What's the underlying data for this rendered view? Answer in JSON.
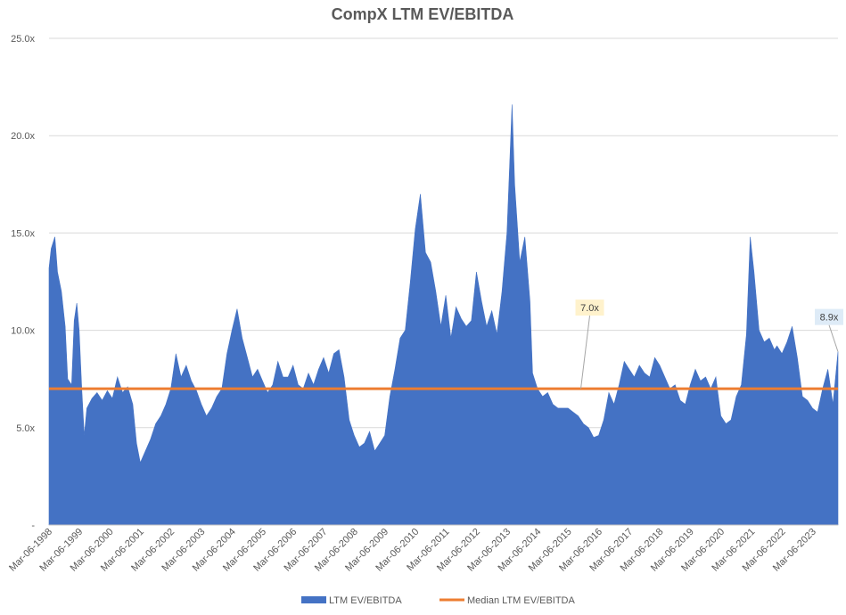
{
  "chart_data": {
    "type": "area",
    "title": "CompX LTM EV/EBITDA",
    "y_ticks": [
      "-",
      "5.0x",
      "10.0x",
      "15.0x",
      "20.0x",
      "25.0x"
    ],
    "ylim": [
      0,
      25
    ],
    "x_labels": [
      "Mar-06-1998",
      "Mar-06-1999",
      "Mar-06-2000",
      "Mar-06-2001",
      "Mar-06-2002",
      "Mar-06-2003",
      "Mar-06-2004",
      "Mar-06-2005",
      "Mar-06-2006",
      "Mar-06-2007",
      "Mar-06-2008",
      "Mar-06-2009",
      "Mar-06-2010",
      "Mar-06-2011",
      "Mar-06-2012",
      "Mar-06-2013",
      "Mar-06-2014",
      "Mar-06-2015",
      "Mar-06-2016",
      "Mar-06-2017",
      "Mar-06-2018",
      "Mar-06-2019",
      "Mar-06-2020",
      "Mar-06-2021",
      "Mar-06-2022",
      "Mar-06-2023"
    ],
    "x_start": "1998-03-06",
    "x_end": "2023-12-31",
    "series": [
      {
        "name": "LTM EV/EBITDA",
        "kind": "area",
        "color": "#4472C4",
        "points": [
          [
            "1998-03-06",
            13.2
          ],
          [
            "1998-04-01",
            14.2
          ],
          [
            "1998-05-15",
            14.8
          ],
          [
            "1998-06-15",
            13.0
          ],
          [
            "1998-08-01",
            12.0
          ],
          [
            "1998-09-15",
            10.2
          ],
          [
            "1998-10-15",
            7.5
          ],
          [
            "1998-12-01",
            7.2
          ],
          [
            "1999-01-01",
            10.5
          ],
          [
            "1999-02-01",
            11.4
          ],
          [
            "1999-03-01",
            10.0
          ],
          [
            "1999-04-01",
            7.0
          ],
          [
            "1999-05-01",
            4.6
          ],
          [
            "1999-06-01",
            6.0
          ],
          [
            "1999-08-01",
            6.5
          ],
          [
            "1999-10-01",
            6.8
          ],
          [
            "1999-12-01",
            6.4
          ],
          [
            "2000-02-01",
            6.9
          ],
          [
            "2000-04-01",
            6.5
          ],
          [
            "2000-06-01",
            7.6
          ],
          [
            "2000-08-01",
            6.8
          ],
          [
            "2000-10-01",
            7.1
          ],
          [
            "2000-12-01",
            6.2
          ],
          [
            "2001-01-15",
            4.2
          ],
          [
            "2001-03-01",
            3.2
          ],
          [
            "2001-05-01",
            3.8
          ],
          [
            "2001-07-01",
            4.4
          ],
          [
            "2001-09-01",
            5.2
          ],
          [
            "2001-11-01",
            5.6
          ],
          [
            "2002-01-01",
            6.2
          ],
          [
            "2002-03-01",
            7.0
          ],
          [
            "2002-05-01",
            8.8
          ],
          [
            "2002-07-01",
            7.6
          ],
          [
            "2002-09-01",
            8.2
          ],
          [
            "2002-11-01",
            7.4
          ],
          [
            "2003-01-01",
            6.9
          ],
          [
            "2003-03-01",
            6.2
          ],
          [
            "2003-05-01",
            5.6
          ],
          [
            "2003-07-01",
            6.0
          ],
          [
            "2003-09-01",
            6.6
          ],
          [
            "2003-11-01",
            7.0
          ],
          [
            "2004-01-01",
            8.8
          ],
          [
            "2004-03-01",
            10.0
          ],
          [
            "2004-05-01",
            11.1
          ],
          [
            "2004-07-01",
            9.6
          ],
          [
            "2004-09-01",
            8.6
          ],
          [
            "2004-11-01",
            7.6
          ],
          [
            "2005-01-01",
            8.0
          ],
          [
            "2005-03-01",
            7.4
          ],
          [
            "2005-05-01",
            6.8
          ],
          [
            "2005-07-01",
            7.2
          ],
          [
            "2005-09-01",
            8.4
          ],
          [
            "2005-11-01",
            7.6
          ],
          [
            "2006-01-01",
            7.6
          ],
          [
            "2006-03-01",
            8.2
          ],
          [
            "2006-05-01",
            7.2
          ],
          [
            "2006-07-01",
            7.0
          ],
          [
            "2006-09-01",
            7.8
          ],
          [
            "2006-11-01",
            7.2
          ],
          [
            "2007-01-01",
            8.0
          ],
          [
            "2007-03-01",
            8.6
          ],
          [
            "2007-05-01",
            7.8
          ],
          [
            "2007-07-01",
            8.8
          ],
          [
            "2007-09-01",
            9.0
          ],
          [
            "2007-11-01",
            7.6
          ],
          [
            "2008-01-01",
            5.4
          ],
          [
            "2008-03-01",
            4.6
          ],
          [
            "2008-05-01",
            4.0
          ],
          [
            "2008-07-01",
            4.2
          ],
          [
            "2008-09-01",
            4.8
          ],
          [
            "2008-11-01",
            3.8
          ],
          [
            "2009-01-01",
            4.2
          ],
          [
            "2009-03-01",
            4.6
          ],
          [
            "2009-05-01",
            6.6
          ],
          [
            "2009-07-01",
            8.0
          ],
          [
            "2009-09-01",
            9.6
          ],
          [
            "2009-11-01",
            10.0
          ],
          [
            "2010-01-01",
            12.5
          ],
          [
            "2010-03-01",
            15.2
          ],
          [
            "2010-05-01",
            17.0
          ],
          [
            "2010-07-01",
            14.0
          ],
          [
            "2010-09-01",
            13.5
          ],
          [
            "2010-11-01",
            12.0
          ],
          [
            "2011-01-01",
            10.2
          ],
          [
            "2011-03-01",
            11.8
          ],
          [
            "2011-05-01",
            9.6
          ],
          [
            "2011-07-01",
            11.2
          ],
          [
            "2011-09-01",
            10.6
          ],
          [
            "2011-11-01",
            10.2
          ],
          [
            "2012-01-01",
            10.5
          ],
          [
            "2012-03-01",
            13.0
          ],
          [
            "2012-05-01",
            11.5
          ],
          [
            "2012-07-01",
            10.2
          ],
          [
            "2012-09-01",
            11.0
          ],
          [
            "2012-11-01",
            9.8
          ],
          [
            "2013-01-01",
            12.0
          ],
          [
            "2013-03-01",
            15.0
          ],
          [
            "2013-05-01",
            21.6
          ],
          [
            "2013-06-01",
            17.5
          ],
          [
            "2013-08-01",
            13.5
          ],
          [
            "2013-10-01",
            14.8
          ],
          [
            "2013-12-01",
            11.5
          ],
          [
            "2014-01-01",
            7.8
          ],
          [
            "2014-03-01",
            7.0
          ],
          [
            "2014-05-01",
            6.6
          ],
          [
            "2014-07-01",
            6.8
          ],
          [
            "2014-09-01",
            6.2
          ],
          [
            "2014-11-01",
            6.0
          ],
          [
            "2015-01-01",
            6.0
          ],
          [
            "2015-03-01",
            6.0
          ],
          [
            "2015-05-01",
            5.8
          ],
          [
            "2015-07-01",
            5.6
          ],
          [
            "2015-09-01",
            5.2
          ],
          [
            "2015-11-01",
            5.0
          ],
          [
            "2016-01-01",
            4.5
          ],
          [
            "2016-03-01",
            4.6
          ],
          [
            "2016-05-01",
            5.4
          ],
          [
            "2016-07-01",
            6.8
          ],
          [
            "2016-09-01",
            6.2
          ],
          [
            "2016-11-01",
            7.2
          ],
          [
            "2017-01-01",
            8.4
          ],
          [
            "2017-03-01",
            8.0
          ],
          [
            "2017-05-01",
            7.6
          ],
          [
            "2017-07-01",
            8.2
          ],
          [
            "2017-09-01",
            7.8
          ],
          [
            "2017-11-01",
            7.6
          ],
          [
            "2018-01-01",
            8.6
          ],
          [
            "2018-03-01",
            8.2
          ],
          [
            "2018-05-01",
            7.6
          ],
          [
            "2018-07-01",
            7.0
          ],
          [
            "2018-09-01",
            7.2
          ],
          [
            "2018-11-01",
            6.4
          ],
          [
            "2019-01-01",
            6.2
          ],
          [
            "2019-03-01",
            7.2
          ],
          [
            "2019-05-01",
            8.0
          ],
          [
            "2019-07-01",
            7.4
          ],
          [
            "2019-09-01",
            7.6
          ],
          [
            "2019-11-01",
            7.0
          ],
          [
            "2020-01-01",
            7.6
          ],
          [
            "2020-03-01",
            5.6
          ],
          [
            "2020-05-01",
            5.2
          ],
          [
            "2020-07-01",
            5.4
          ],
          [
            "2020-09-01",
            6.6
          ],
          [
            "2020-11-01",
            7.2
          ],
          [
            "2021-01-01",
            9.8
          ],
          [
            "2021-02-15",
            14.8
          ],
          [
            "2021-04-01",
            13.0
          ],
          [
            "2021-06-01",
            10.0
          ],
          [
            "2021-08-01",
            9.4
          ],
          [
            "2021-10-01",
            9.6
          ],
          [
            "2021-12-01",
            9.0
          ],
          [
            "2022-01-01",
            9.2
          ],
          [
            "2022-03-01",
            8.8
          ],
          [
            "2022-05-01",
            9.4
          ],
          [
            "2022-07-01",
            10.2
          ],
          [
            "2022-09-01",
            8.6
          ],
          [
            "2022-11-01",
            6.6
          ],
          [
            "2023-01-01",
            6.4
          ],
          [
            "2023-03-01",
            6.0
          ],
          [
            "2023-05-01",
            5.8
          ],
          [
            "2023-07-01",
            7.0
          ],
          [
            "2023-09-01",
            8.0
          ],
          [
            "2023-11-01",
            6.2
          ],
          [
            "2023-12-31",
            8.9
          ]
        ]
      },
      {
        "name": "Median LTM EV/EBITDA",
        "kind": "line",
        "color": "#ED7D31",
        "value": 7.0
      }
    ],
    "annotations": [
      {
        "label": "7.0x",
        "value": 7.0,
        "date": "2015-08-01",
        "fill": "#FFF2CC"
      },
      {
        "label": "8.9x",
        "value": 8.9,
        "date": "2023-12-31",
        "fill": "#DEEBF7"
      }
    ],
    "legend": {
      "placement": "bottom",
      "items": [
        {
          "label": "LTM EV/EBITDA",
          "color": "#4472C4",
          "kind": "area"
        },
        {
          "label": "Median LTM EV/EBITDA",
          "color": "#ED7D31",
          "kind": "line"
        }
      ]
    },
    "grid": true
  }
}
